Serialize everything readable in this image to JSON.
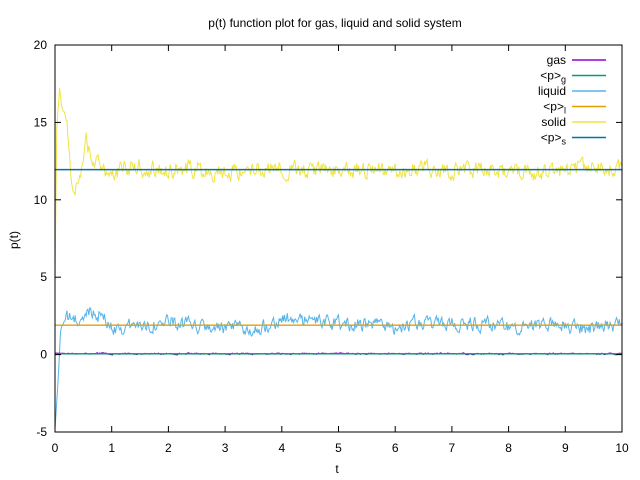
{
  "chart_data": {
    "type": "line",
    "title": "p(t) function plot for gas, liquid and solid system",
    "xlabel": "t",
    "ylabel": "p(t)",
    "xlim": [
      0,
      10
    ],
    "ylim": [
      -5,
      20
    ],
    "x_ticks": [
      "0",
      "1",
      "2",
      "3",
      "4",
      "5",
      "6",
      "7",
      "8",
      "9",
      "10"
    ],
    "y_ticks": [
      "-5",
      "0",
      "5",
      "10",
      "15",
      "20"
    ],
    "grid": false,
    "legend_position": "top-right",
    "series": [
      {
        "name": "gas",
        "color": "#9400d3",
        "kind": "noisy",
        "mean": 0.05,
        "start_value": 0.1,
        "x": [
          0.0,
          0.25,
          0.5,
          0.75,
          1.0,
          1.5,
          2.0,
          2.5,
          3.0,
          3.5,
          4.0,
          4.5,
          5.0,
          5.5,
          6.0,
          6.5,
          7.0,
          7.5,
          8.0,
          8.5,
          9.0,
          9.5,
          10.0
        ],
        "y": [
          0.1,
          0.08,
          0.05,
          0.12,
          0.03,
          0.06,
          0.04,
          0.07,
          0.05,
          0.03,
          0.06,
          0.05,
          0.08,
          0.04,
          0.06,
          0.05,
          0.07,
          0.04,
          0.05,
          0.06,
          0.04,
          0.05,
          0.05
        ],
        "amplitude": 0.05
      },
      {
        "name": "<p>g",
        "label_main": "<p>",
        "label_sub": "g",
        "color": "#009e73",
        "kind": "constant",
        "value": 0.05
      },
      {
        "name": "liquid",
        "color": "#56b4e9",
        "kind": "noisy",
        "mean": 1.9,
        "start_value": -4.8,
        "x": [
          0.0,
          0.05,
          0.1,
          0.2,
          0.3,
          0.5,
          0.6,
          0.8,
          1.0,
          1.5,
          2.0,
          2.5,
          3.0,
          3.5,
          4.0,
          4.5,
          5.0,
          5.5,
          6.0,
          6.5,
          7.0,
          7.5,
          8.0,
          8.5,
          9.0,
          9.5,
          10.0
        ],
        "y": [
          -4.8,
          -2.0,
          1.7,
          2.4,
          2.3,
          2.1,
          2.9,
          2.6,
          1.7,
          1.9,
          2.1,
          1.8,
          1.7,
          1.6,
          2.3,
          2.2,
          2.0,
          1.9,
          1.8,
          2.0,
          1.9,
          2.0,
          1.8,
          2.0,
          1.9,
          1.7,
          1.9
        ],
        "amplitude": 0.45
      },
      {
        "name": "<p>l",
        "label_main": "<p>",
        "label_sub": "l",
        "color": "#e69f00",
        "kind": "constant",
        "value": 1.9
      },
      {
        "name": "solid",
        "color": "#f0e442",
        "kind": "noisy",
        "mean": 11.9,
        "start_value": 4.5,
        "x": [
          0.0,
          0.03,
          0.08,
          0.12,
          0.2,
          0.3,
          0.4,
          0.55,
          0.65,
          0.8,
          1.0,
          1.5,
          2.0,
          2.5,
          3.0,
          3.5,
          4.0,
          4.5,
          5.0,
          5.5,
          6.0,
          6.5,
          7.0,
          7.5,
          8.0,
          8.5,
          9.0,
          9.5,
          10.0
        ],
        "y": [
          4.5,
          14.5,
          17.2,
          16.0,
          15.3,
          11.0,
          10.8,
          13.8,
          12.8,
          12.0,
          11.8,
          12.1,
          11.9,
          12.0,
          11.8,
          12.1,
          11.9,
          12.0,
          11.8,
          12.0,
          11.9,
          12.1,
          11.9,
          12.0,
          11.9,
          11.8,
          12.0,
          11.9,
          12.2
        ],
        "amplitude": 0.55
      },
      {
        "name": "<p>s",
        "label_main": "<p>",
        "label_sub": "s",
        "color": "#0072b2",
        "kind": "constant",
        "value": 11.95
      }
    ]
  }
}
